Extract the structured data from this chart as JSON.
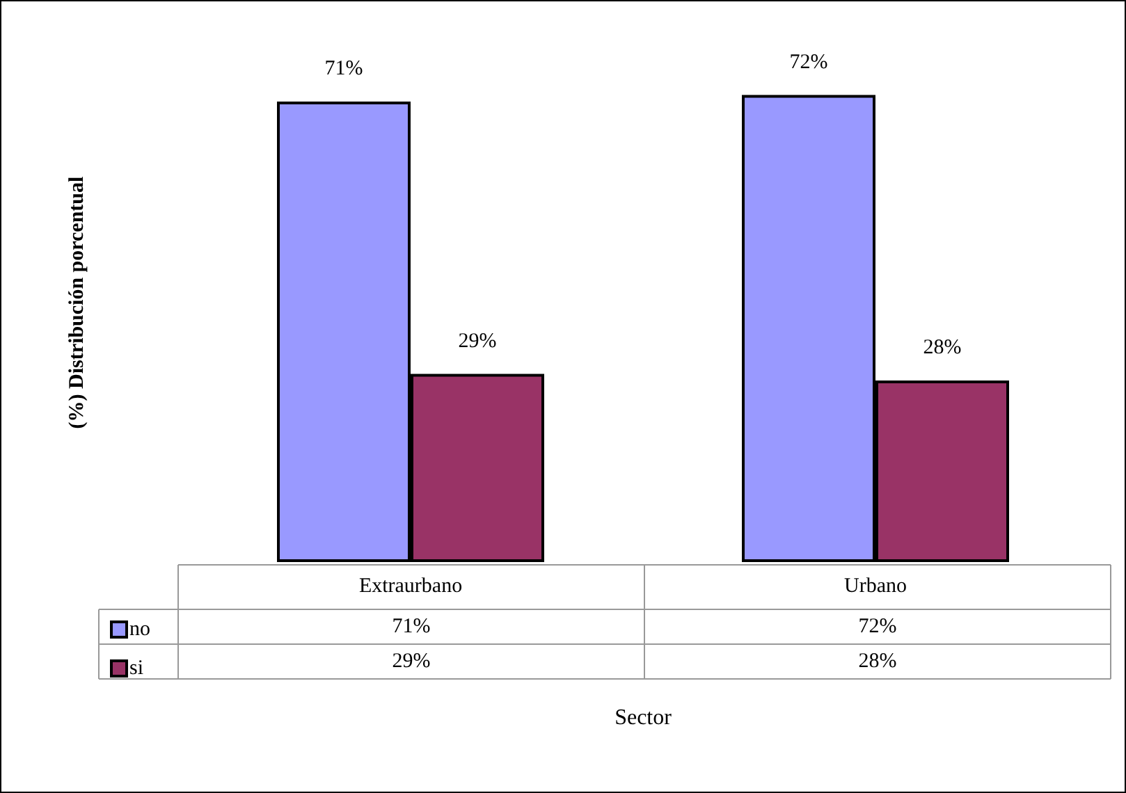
{
  "chart_data": {
    "type": "bar",
    "ylabel": "(%) Distribución porcentual",
    "xlabel": "Sector",
    "categories": [
      "Extraurbano",
      "Urbano"
    ],
    "series": [
      {
        "name": "no",
        "color": "#9999ff",
        "values": [
          71,
          72
        ],
        "value_labels": [
          "71%",
          "72%"
        ]
      },
      {
        "name": "si",
        "color": "#993366",
        "values": [
          29,
          28
        ],
        "value_labels": [
          "29%",
          "28%"
        ]
      }
    ],
    "grid": false,
    "legend": "bottom"
  }
}
